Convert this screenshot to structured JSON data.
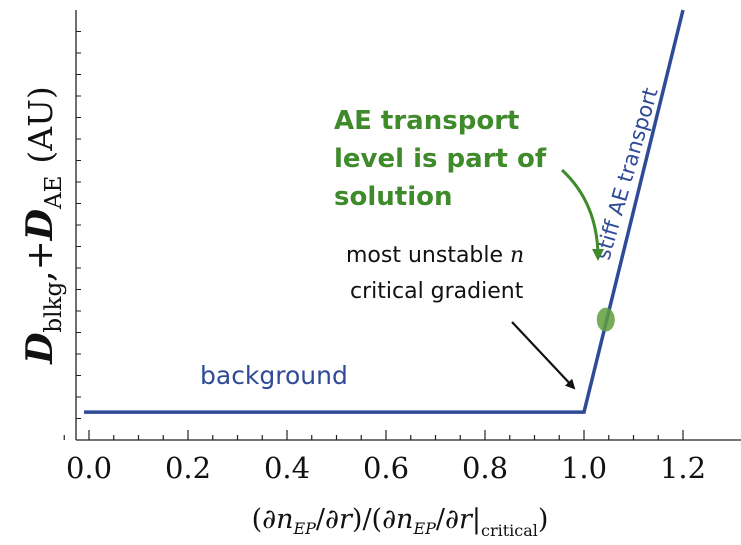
{
  "chart_data": {
    "type": "line",
    "xlim": [
      -0.06,
      1.32
    ],
    "ylim": [
      0,
      1
    ],
    "x_ticks": [
      "0.0",
      "0.2",
      "0.4",
      "0.6",
      "0.8",
      "1.0",
      "1.2"
    ],
    "x_tick_values": [
      0.0,
      0.2,
      0.4,
      0.6,
      0.8,
      1.0,
      1.2
    ],
    "xlabel": {
      "open1": "(∂",
      "n1": "n",
      "sub1": "EP",
      "slash1": "/∂",
      "r1": "r",
      "mid": ")/(∂",
      "n2": "n",
      "sub2": "EP",
      "slash2": "/∂",
      "r2": "r",
      "bar": "|",
      "sub3": "critical",
      "close": ")"
    },
    "ylabel": {
      "d1": "D",
      "sub1": "blkg",
      "plus": ",+",
      "d2": "D",
      "sub2": "AE",
      "units": "(AU)"
    },
    "grid": false,
    "series": [
      {
        "color": "#2f4a97",
        "points": [
          [
            -0.01,
            0.065
          ],
          [
            1.0,
            0.065
          ],
          [
            1.2,
            1.0
          ]
        ]
      }
    ],
    "marker": {
      "x": 1.044,
      "y": 0.28,
      "color": "#5f9e3e"
    },
    "annotations": {
      "background": "background",
      "stiff": "stiff AE transport",
      "critical_line1": "most unstable",
      "critical_n": "n",
      "critical_line2": "critical gradient",
      "green_line1": "AE transport",
      "green_line2": "level is part of",
      "green_line3": "solution"
    },
    "colors": {
      "line": "#2f4a97",
      "green": "#3f8a2a",
      "axis": "#222222"
    }
  }
}
